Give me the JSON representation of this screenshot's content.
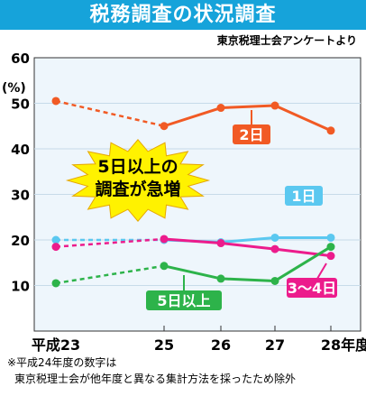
{
  "header": {
    "title": "税務調査の状況調査",
    "source": "東京税理士会アンケートより"
  },
  "chart_data": {
    "type": "line",
    "title": "税務調査の状況調査",
    "ylabel": "(%)",
    "xlabel": "",
    "ylim": [
      0,
      60
    ],
    "yticks": [
      10,
      20,
      30,
      40,
      50,
      60
    ],
    "x_labels": [
      "平成23",
      "25",
      "26",
      "27",
      "28年度"
    ],
    "x": [
      23,
      25,
      26,
      27,
      28
    ],
    "series": [
      {
        "name": "2日",
        "color": "#f15a24",
        "values": [
          50.5,
          45,
          49,
          49.5,
          44
        ]
      },
      {
        "name": "1日",
        "color": "#5bc8f0",
        "values": [
          20,
          20,
          19.5,
          20.5,
          20.5
        ]
      },
      {
        "name": "3～4日",
        "color": "#ec1c8c",
        "values": [
          18.5,
          20.2,
          19.3,
          18,
          16.5
        ]
      },
      {
        "name": "5日以上",
        "color": "#2db34a",
        "values": [
          10.5,
          14.3,
          11.5,
          11,
          18.5
        ]
      }
    ],
    "gap_note": "dashed between 23 and 25",
    "annotation": [
      "5日以上の",
      "調査が急増"
    ]
  },
  "footnote": {
    "line1": "※平成24年度の数字は",
    "line2": "東京税理士会が他年度と異なる集計方法を採ったため除外"
  }
}
